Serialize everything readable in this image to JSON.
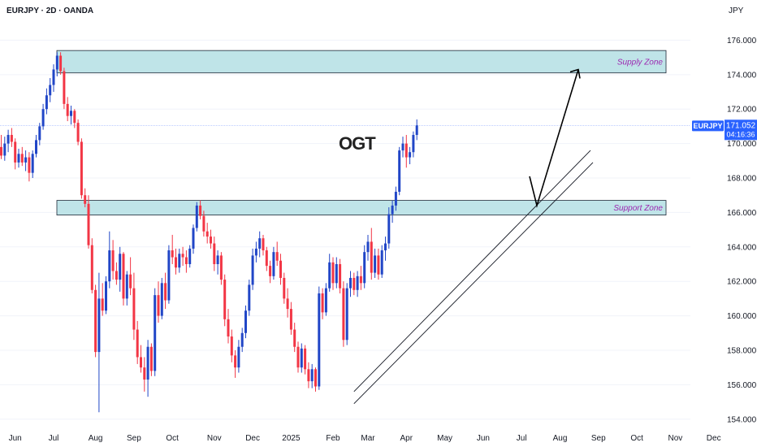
{
  "header": {
    "symbol_line": "EURJPY · 2D · OANDA",
    "currency": "JPY"
  },
  "watermark": "OGT",
  "price_tag": {
    "symbol": "EURJPY",
    "price": "171.052",
    "countdown": "04:16:36",
    "color": "#2962ff"
  },
  "zones": {
    "supply": {
      "label": "Supply Zone",
      "low": 174.1,
      "high": 175.4
    },
    "support": {
      "label": "Support Zone",
      "low": 165.85,
      "high": 166.7
    },
    "fill_color": "#bfe4e8",
    "label_color": "#9c27b0"
  },
  "colors": {
    "up": "#2146c7",
    "down": "#f23645",
    "grid": "#f0f3fa"
  },
  "chart_data": {
    "type": "candlestick",
    "symbol": "EURJPY",
    "timeframe": "2D",
    "ylim": [
      153.8,
      177.2
    ],
    "y_ticks": [
      154,
      156,
      158,
      160,
      162,
      164,
      166,
      168,
      170,
      172,
      174,
      176
    ],
    "y_tick_labels": [
      "154.000",
      "156.000",
      "158.000",
      "160.000",
      "162.000",
      "164.000",
      "166.000",
      "168.000",
      "170.000",
      "172.000",
      "174.000",
      "176.000"
    ],
    "x_labels": [
      "Jun",
      "Jul",
      "Aug",
      "Sep",
      "Oct",
      "Nov",
      "Dec",
      "2025",
      "Feb",
      "Mar",
      "Apr",
      "May",
      "Jun",
      "Jul",
      "Aug",
      "Sep",
      "Oct",
      "Nov",
      "Dec"
    ],
    "x_label_index": [
      4,
      15,
      27,
      38,
      49,
      61,
      72,
      83,
      95,
      105,
      116,
      127,
      138,
      149,
      160,
      171,
      182,
      193,
      204
    ],
    "last_price": 171.052,
    "candles": [
      {
        "o": 169.8,
        "h": 170.5,
        "l": 169.1,
        "c": 169.3
      },
      {
        "o": 169.3,
        "h": 170.4,
        "l": 169.0,
        "c": 170.0
      },
      {
        "o": 170.0,
        "h": 170.8,
        "l": 169.5,
        "c": 170.5
      },
      {
        "o": 170.5,
        "h": 170.9,
        "l": 169.8,
        "c": 170.1
      },
      {
        "o": 170.1,
        "h": 170.3,
        "l": 168.5,
        "c": 168.9
      },
      {
        "o": 168.9,
        "h": 169.7,
        "l": 168.6,
        "c": 169.4
      },
      {
        "o": 169.4,
        "h": 169.8,
        "l": 168.7,
        "c": 168.9
      },
      {
        "o": 168.9,
        "h": 169.6,
        "l": 168.4,
        "c": 169.2
      },
      {
        "o": 169.2,
        "h": 169.5,
        "l": 167.8,
        "c": 168.3
      },
      {
        "o": 168.3,
        "h": 169.6,
        "l": 168.0,
        "c": 169.4
      },
      {
        "o": 169.4,
        "h": 170.5,
        "l": 169.2,
        "c": 170.2
      },
      {
        "o": 170.2,
        "h": 171.2,
        "l": 169.9,
        "c": 171.0
      },
      {
        "o": 171.0,
        "h": 172.3,
        "l": 170.8,
        "c": 172.0
      },
      {
        "o": 172.0,
        "h": 173.2,
        "l": 171.7,
        "c": 172.8
      },
      {
        "o": 172.8,
        "h": 173.8,
        "l": 172.4,
        "c": 173.4
      },
      {
        "o": 173.4,
        "h": 174.6,
        "l": 173.0,
        "c": 174.3
      },
      {
        "o": 174.3,
        "h": 175.3,
        "l": 173.9,
        "c": 175.1
      },
      {
        "o": 175.1,
        "h": 175.3,
        "l": 174.0,
        "c": 174.2
      },
      {
        "o": 174.2,
        "h": 174.4,
        "l": 172.0,
        "c": 172.3
      },
      {
        "o": 172.3,
        "h": 172.7,
        "l": 171.3,
        "c": 171.6
      },
      {
        "o": 171.6,
        "h": 172.2,
        "l": 171.1,
        "c": 171.9
      },
      {
        "o": 171.9,
        "h": 172.0,
        "l": 170.9,
        "c": 171.2
      },
      {
        "o": 171.2,
        "h": 171.4,
        "l": 169.9,
        "c": 170.1
      },
      {
        "o": 170.1,
        "h": 170.3,
        "l": 166.8,
        "c": 167.0
      },
      {
        "o": 167.0,
        "h": 167.4,
        "l": 166.3,
        "c": 166.5
      },
      {
        "o": 166.5,
        "h": 167.0,
        "l": 163.9,
        "c": 164.1
      },
      {
        "o": 164.1,
        "h": 164.5,
        "l": 161.3,
        "c": 161.5
      },
      {
        "o": 161.5,
        "h": 161.8,
        "l": 157.6,
        "c": 157.9
      },
      {
        "o": 157.9,
        "h": 162.5,
        "l": 154.4,
        "c": 161.0
      },
      {
        "o": 161.0,
        "h": 161.9,
        "l": 160.0,
        "c": 160.3
      },
      {
        "o": 160.3,
        "h": 162.3,
        "l": 160.1,
        "c": 162.0
      },
      {
        "o": 162.0,
        "h": 164.9,
        "l": 161.6,
        "c": 163.8
      },
      {
        "o": 163.8,
        "h": 164.4,
        "l": 162.1,
        "c": 162.6
      },
      {
        "o": 162.6,
        "h": 163.1,
        "l": 161.8,
        "c": 162.1
      },
      {
        "o": 162.1,
        "h": 164.0,
        "l": 161.4,
        "c": 163.6
      },
      {
        "o": 163.6,
        "h": 163.7,
        "l": 160.6,
        "c": 161.0
      },
      {
        "o": 161.0,
        "h": 162.6,
        "l": 160.6,
        "c": 162.4
      },
      {
        "o": 162.4,
        "h": 163.4,
        "l": 161.2,
        "c": 161.6
      },
      {
        "o": 161.6,
        "h": 162.5,
        "l": 158.6,
        "c": 159.2
      },
      {
        "o": 159.2,
        "h": 159.7,
        "l": 157.2,
        "c": 157.6
      },
      {
        "o": 157.6,
        "h": 158.3,
        "l": 156.7,
        "c": 157.0
      },
      {
        "o": 157.0,
        "h": 157.6,
        "l": 155.6,
        "c": 156.3
      },
      {
        "o": 156.3,
        "h": 158.6,
        "l": 155.3,
        "c": 158.2
      },
      {
        "o": 158.2,
        "h": 158.4,
        "l": 156.5,
        "c": 156.8
      },
      {
        "o": 156.8,
        "h": 161.6,
        "l": 156.5,
        "c": 161.2
      },
      {
        "o": 161.2,
        "h": 162.0,
        "l": 159.6,
        "c": 160.0
      },
      {
        "o": 160.0,
        "h": 162.2,
        "l": 159.8,
        "c": 161.9
      },
      {
        "o": 161.9,
        "h": 162.5,
        "l": 160.4,
        "c": 160.9
      },
      {
        "o": 160.9,
        "h": 164.1,
        "l": 160.7,
        "c": 163.8
      },
      {
        "o": 163.8,
        "h": 164.7,
        "l": 163.0,
        "c": 163.4
      },
      {
        "o": 163.4,
        "h": 163.9,
        "l": 162.4,
        "c": 162.8
      },
      {
        "o": 162.8,
        "h": 163.9,
        "l": 162.5,
        "c": 163.6
      },
      {
        "o": 163.6,
        "h": 164.0,
        "l": 162.9,
        "c": 163.4
      },
      {
        "o": 163.4,
        "h": 163.8,
        "l": 162.5,
        "c": 163.0
      },
      {
        "o": 163.0,
        "h": 164.1,
        "l": 162.8,
        "c": 163.9
      },
      {
        "o": 163.9,
        "h": 165.3,
        "l": 163.6,
        "c": 165.1
      },
      {
        "o": 165.1,
        "h": 166.6,
        "l": 164.9,
        "c": 166.4
      },
      {
        "o": 166.4,
        "h": 166.7,
        "l": 165.6,
        "c": 165.8
      },
      {
        "o": 165.8,
        "h": 166.1,
        "l": 164.6,
        "c": 164.9
      },
      {
        "o": 164.9,
        "h": 165.4,
        "l": 164.2,
        "c": 164.6
      },
      {
        "o": 164.6,
        "h": 165.0,
        "l": 163.9,
        "c": 164.2
      },
      {
        "o": 164.2,
        "h": 164.6,
        "l": 162.6,
        "c": 163.0
      },
      {
        "o": 163.0,
        "h": 163.8,
        "l": 162.4,
        "c": 163.5
      },
      {
        "o": 163.5,
        "h": 163.7,
        "l": 161.8,
        "c": 162.1
      },
      {
        "o": 162.1,
        "h": 162.4,
        "l": 159.4,
        "c": 159.8
      },
      {
        "o": 159.8,
        "h": 160.4,
        "l": 158.4,
        "c": 158.8
      },
      {
        "o": 158.8,
        "h": 159.2,
        "l": 157.3,
        "c": 157.7
      },
      {
        "o": 157.7,
        "h": 158.0,
        "l": 156.4,
        "c": 157.0
      },
      {
        "o": 157.0,
        "h": 158.6,
        "l": 156.7,
        "c": 158.2
      },
      {
        "o": 158.2,
        "h": 159.3,
        "l": 157.9,
        "c": 159.0
      },
      {
        "o": 159.0,
        "h": 160.6,
        "l": 158.7,
        "c": 160.3
      },
      {
        "o": 160.3,
        "h": 162.1,
        "l": 160.0,
        "c": 161.8
      },
      {
        "o": 161.8,
        "h": 163.9,
        "l": 161.5,
        "c": 163.5
      },
      {
        "o": 163.5,
        "h": 164.3,
        "l": 163.1,
        "c": 163.9
      },
      {
        "o": 163.9,
        "h": 164.9,
        "l": 163.4,
        "c": 164.5
      },
      {
        "o": 164.5,
        "h": 164.7,
        "l": 163.5,
        "c": 163.8
      },
      {
        "o": 163.8,
        "h": 164.0,
        "l": 162.6,
        "c": 162.9
      },
      {
        "o": 162.9,
        "h": 163.2,
        "l": 161.9,
        "c": 162.3
      },
      {
        "o": 162.3,
        "h": 164.0,
        "l": 162.1,
        "c": 163.7
      },
      {
        "o": 163.7,
        "h": 164.3,
        "l": 162.9,
        "c": 163.2
      },
      {
        "o": 163.2,
        "h": 163.6,
        "l": 161.8,
        "c": 162.2
      },
      {
        "o": 162.2,
        "h": 162.5,
        "l": 160.7,
        "c": 161.0
      },
      {
        "o": 161.0,
        "h": 161.6,
        "l": 159.9,
        "c": 160.4
      },
      {
        "o": 160.4,
        "h": 160.8,
        "l": 158.9,
        "c": 159.2
      },
      {
        "o": 159.2,
        "h": 159.6,
        "l": 157.9,
        "c": 158.2
      },
      {
        "o": 158.2,
        "h": 158.5,
        "l": 156.7,
        "c": 157.0
      },
      {
        "o": 157.0,
        "h": 158.4,
        "l": 156.7,
        "c": 158.1
      },
      {
        "o": 158.1,
        "h": 158.3,
        "l": 156.6,
        "c": 156.9
      },
      {
        "o": 156.9,
        "h": 157.3,
        "l": 155.8,
        "c": 156.2
      },
      {
        "o": 156.2,
        "h": 157.2,
        "l": 155.8,
        "c": 156.9
      },
      {
        "o": 156.9,
        "h": 157.0,
        "l": 155.6,
        "c": 155.9
      },
      {
        "o": 155.9,
        "h": 161.7,
        "l": 155.7,
        "c": 161.3
      },
      {
        "o": 161.3,
        "h": 161.6,
        "l": 159.8,
        "c": 160.2
      },
      {
        "o": 160.2,
        "h": 161.9,
        "l": 160.0,
        "c": 161.6
      },
      {
        "o": 161.6,
        "h": 163.6,
        "l": 161.4,
        "c": 163.1
      },
      {
        "o": 163.1,
        "h": 163.4,
        "l": 161.5,
        "c": 161.9
      },
      {
        "o": 161.9,
        "h": 163.4,
        "l": 161.6,
        "c": 163.0
      },
      {
        "o": 163.0,
        "h": 163.3,
        "l": 161.3,
        "c": 161.6
      },
      {
        "o": 161.6,
        "h": 162.0,
        "l": 158.2,
        "c": 158.6
      },
      {
        "o": 158.6,
        "h": 161.9,
        "l": 158.3,
        "c": 161.6
      },
      {
        "o": 161.6,
        "h": 162.6,
        "l": 161.1,
        "c": 162.2
      },
      {
        "o": 162.2,
        "h": 162.5,
        "l": 161.2,
        "c": 161.5
      },
      {
        "o": 161.5,
        "h": 162.6,
        "l": 161.1,
        "c": 162.3
      },
      {
        "o": 162.3,
        "h": 162.9,
        "l": 161.5,
        "c": 161.9
      },
      {
        "o": 161.9,
        "h": 164.1,
        "l": 161.6,
        "c": 163.7
      },
      {
        "o": 163.7,
        "h": 164.7,
        "l": 163.2,
        "c": 164.3
      },
      {
        "o": 164.3,
        "h": 165.1,
        "l": 162.1,
        "c": 162.5
      },
      {
        "o": 162.5,
        "h": 163.9,
        "l": 162.2,
        "c": 163.5
      },
      {
        "o": 163.5,
        "h": 163.9,
        "l": 162.1,
        "c": 162.4
      },
      {
        "o": 162.4,
        "h": 164.1,
        "l": 162.2,
        "c": 163.8
      },
      {
        "o": 163.8,
        "h": 164.6,
        "l": 163.2,
        "c": 164.2
      },
      {
        "o": 164.2,
        "h": 166.3,
        "l": 163.9,
        "c": 165.9
      },
      {
        "o": 165.9,
        "h": 166.7,
        "l": 165.4,
        "c": 166.4
      },
      {
        "o": 166.4,
        "h": 167.5,
        "l": 166.1,
        "c": 167.2
      },
      {
        "o": 167.2,
        "h": 169.8,
        "l": 167.0,
        "c": 169.6
      },
      {
        "o": 169.6,
        "h": 170.4,
        "l": 169.2,
        "c": 170.0
      },
      {
        "o": 170.0,
        "h": 170.5,
        "l": 168.6,
        "c": 169.2
      },
      {
        "o": 169.2,
        "h": 169.8,
        "l": 168.8,
        "c": 169.5
      },
      {
        "o": 169.5,
        "h": 170.7,
        "l": 169.2,
        "c": 170.5
      },
      {
        "o": 170.5,
        "h": 171.4,
        "l": 170.2,
        "c": 171.05
      }
    ]
  }
}
